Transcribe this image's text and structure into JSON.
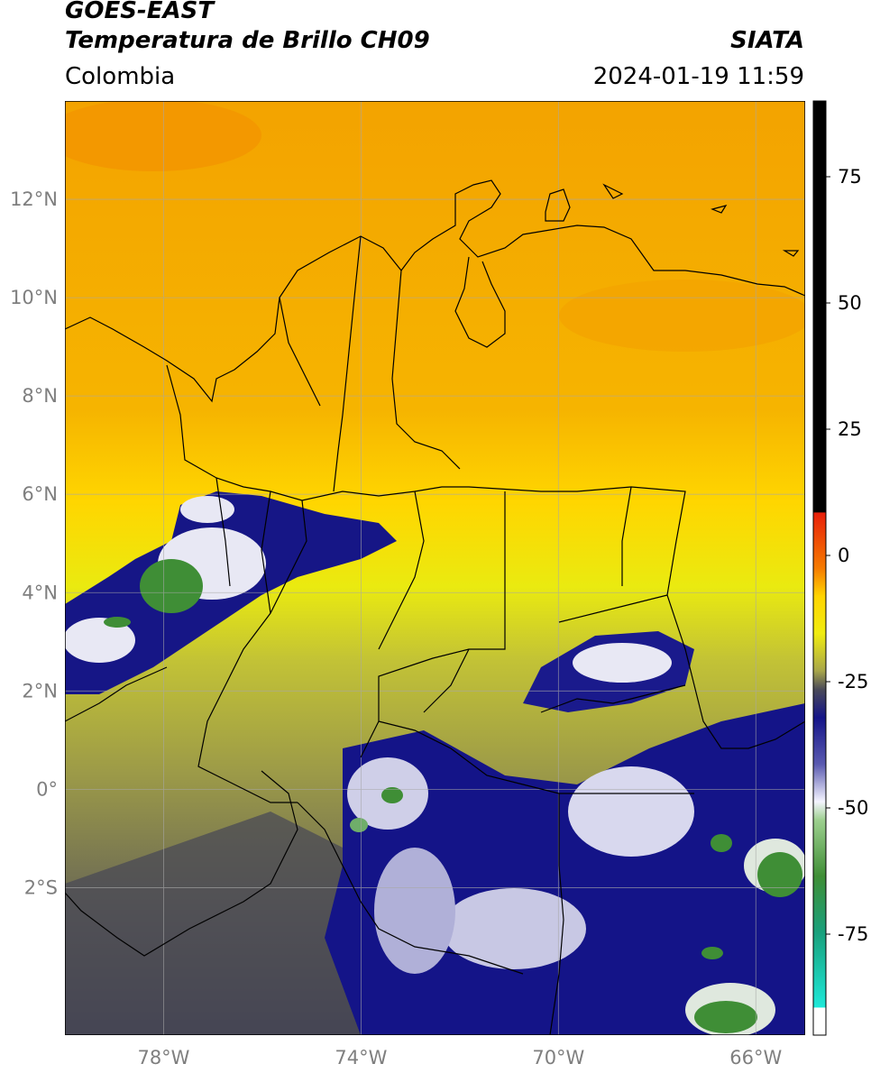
{
  "header": {
    "satellite": "GOES-EAST",
    "product": "Temperatura de Brillo CH09",
    "region": "Colombia",
    "agency": "SIATA",
    "datetime": "2024-01-19 11:59"
  },
  "map": {
    "lon_range": [
      -80,
      -65
    ],
    "lat_range": [
      -5,
      14
    ],
    "lat_labels": [
      "12°N",
      "10°N",
      "8°N",
      "6°N",
      "4°N",
      "2°N",
      "0°",
      "2°S"
    ],
    "lat_values": [
      12,
      10,
      8,
      6,
      4,
      2,
      0,
      -2
    ],
    "lon_labels": [
      "78°W",
      "74°W",
      "70°W",
      "66°W"
    ],
    "lon_values": [
      -78,
      -74,
      -70,
      -66
    ]
  },
  "colorbar": {
    "labels": [
      "75",
      "50",
      "25",
      "0",
      "-25",
      "-50",
      "-75"
    ],
    "values": [
      75,
      50,
      25,
      0,
      -25,
      -50,
      -75
    ],
    "range": [
      -95,
      90
    ],
    "colors": {
      "hot": "#000000",
      "red": "#e8200a",
      "orange": "#f5a000",
      "yellow": "#ffee00",
      "olive": "#a8a64a",
      "dark": "#3c3c52",
      "navy": "#141488",
      "white": "#ffffff",
      "green": "#3f8e36",
      "cyan": "#1ee8d8"
    }
  }
}
